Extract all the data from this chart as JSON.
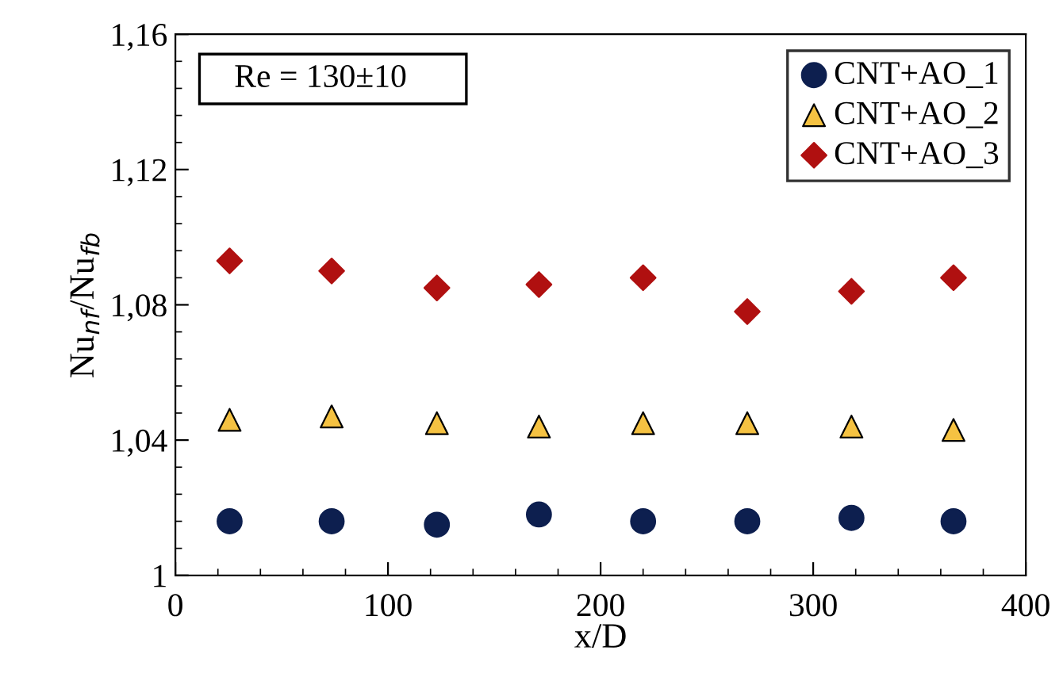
{
  "chart_data": {
    "type": "scatter",
    "xlabel": "x/D",
    "ylabel": "Nu$_{nf}$/Nu$_{fb}$",
    "annotations": [
      "Re = 130±10"
    ],
    "x": [
      25.5,
      73.5,
      123,
      171,
      220,
      269,
      318,
      366
    ],
    "series": [
      {
        "name": "CNT+AO_1",
        "color": "#0d1f4f",
        "marker": "circle",
        "values": [
          1.016,
          1.016,
          1.015,
          1.018,
          1.016,
          1.016,
          1.017,
          1.016
        ]
      },
      {
        "name": "CNT+AO_2",
        "color": "#f5c242",
        "marker": "triangle",
        "values": [
          1.046,
          1.047,
          1.045,
          1.044,
          1.045,
          1.045,
          1.044,
          1.043
        ]
      },
      {
        "name": "CNT+AO_3",
        "color": "#b01010",
        "marker": "diamond",
        "values": [
          1.093,
          1.09,
          1.085,
          1.086,
          1.088,
          1.078,
          1.084,
          1.088
        ]
      }
    ],
    "xlim": [
      0,
      400
    ],
    "xticks": [
      0,
      100,
      200,
      300,
      400
    ],
    "ylim": [
      1,
      1.16
    ],
    "yticks": [
      {
        "value": 1,
        "label": "1"
      },
      {
        "value": 1.04,
        "label": "1,04"
      },
      {
        "value": 1.08,
        "label": "1,08"
      },
      {
        "value": 1.12,
        "label": "1,12"
      },
      {
        "value": 1.16,
        "label": "1,16"
      }
    ],
    "grid": false,
    "legend": "top right"
  }
}
